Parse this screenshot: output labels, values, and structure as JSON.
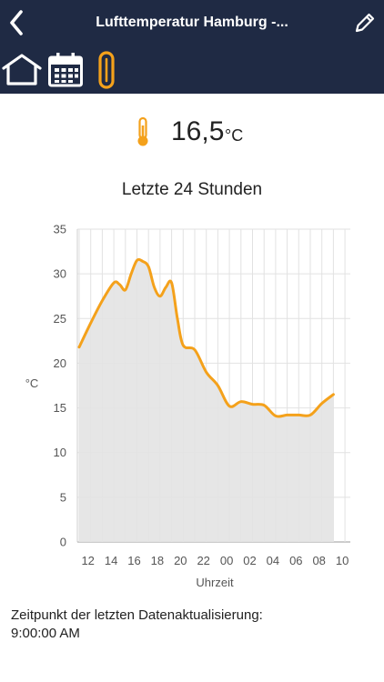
{
  "header": {
    "title": "Lufttemperatur Hamburg -...",
    "tabs": [
      {
        "icon": "home-icon"
      },
      {
        "icon": "calendar-icon"
      },
      {
        "icon": "thermometer-icon",
        "active": true
      }
    ]
  },
  "current": {
    "value": "16,5",
    "unit": "°C"
  },
  "chart_title": "Letzte 24 Stunden",
  "chart_data": {
    "type": "area",
    "title": "Letzte 24 Stunden",
    "xlabel": "Uhrzeit",
    "ylabel": "°C",
    "ylim": [
      0,
      35
    ],
    "xlim": [
      11,
      10
    ],
    "yticks": [
      "0",
      "5",
      "10",
      "15",
      "20",
      "25",
      "30",
      "35"
    ],
    "xticks": [
      "12",
      "14",
      "16",
      "18",
      "20",
      "22",
      "00",
      "02",
      "04",
      "06",
      "08",
      "10"
    ],
    "grid": true,
    "line_color": "#f4a11b",
    "fill_color": "#e3e3e3",
    "x": [
      "11:00",
      "12:00",
      "13:00",
      "14:00",
      "14:30",
      "15:00",
      "15:30",
      "16:00",
      "16:30",
      "17:00",
      "17:30",
      "18:00",
      "18:30",
      "19:00",
      "19:30",
      "20:00",
      "21:00",
      "22:00",
      "23:00",
      "00:00",
      "01:00",
      "02:00",
      "03:00",
      "04:00",
      "05:00",
      "06:00",
      "07:00",
      "08:00",
      "09:00"
    ],
    "values": [
      21.8,
      24.5,
      27.0,
      29.0,
      28.8,
      28.2,
      30.0,
      31.5,
      31.4,
      30.8,
      28.5,
      27.5,
      28.5,
      29.0,
      25.0,
      22.0,
      21.5,
      19.0,
      17.5,
      15.2,
      15.7,
      15.4,
      15.3,
      14.1,
      14.2,
      14.2,
      14.2,
      15.5,
      16.5
    ]
  },
  "footer": {
    "label": "Zeitpunkt der letzten Datenaktualisierung:",
    "time": "9:00:00 AM"
  }
}
